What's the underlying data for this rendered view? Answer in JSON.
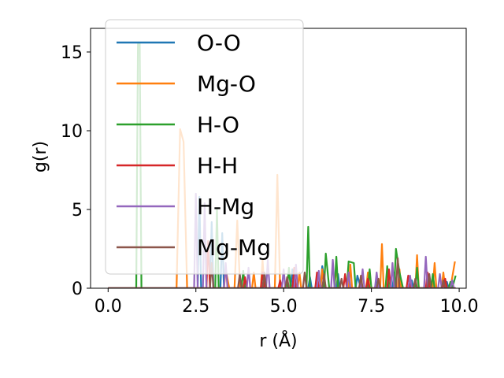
{
  "chart_data": {
    "type": "line",
    "xlabel": "r (Å)",
    "ylabel": "g(r)",
    "xlim": [
      -0.5,
      10.2
    ],
    "ylim": [
      0,
      16.5
    ],
    "x_ticks": [
      "0.0",
      "2.5",
      "5.0",
      "7.5",
      "10.0"
    ],
    "y_ticks": [
      "0",
      "5",
      "10",
      "15"
    ],
    "legend_position": "upper-left",
    "grid": false,
    "series": [
      {
        "name": "O-O",
        "color": "#1f77b4",
        "points": [
          [
            0,
            0
          ],
          [
            2.0,
            0
          ],
          [
            2.55,
            0
          ],
          [
            2.6,
            5.8
          ],
          [
            2.65,
            0
          ],
          [
            2.9,
            0
          ],
          [
            2.95,
            4.2
          ],
          [
            3.0,
            0
          ],
          [
            3.2,
            0
          ],
          [
            3.25,
            3.5
          ],
          [
            3.3,
            0
          ],
          [
            4.4,
            0
          ],
          [
            4.45,
            1.0
          ],
          [
            4.5,
            0
          ],
          [
            5.2,
            0
          ],
          [
            5.25,
            1.2
          ],
          [
            5.3,
            0
          ],
          [
            5.7,
            0
          ],
          [
            5.75,
            0.7
          ],
          [
            5.8,
            0
          ],
          [
            6.05,
            0
          ],
          [
            6.1,
            1.4
          ],
          [
            6.2,
            0
          ],
          [
            6.5,
            0
          ],
          [
            6.55,
            0.9
          ],
          [
            6.6,
            0
          ],
          [
            7.05,
            0
          ],
          [
            7.1,
            0.8
          ],
          [
            7.2,
            0
          ],
          [
            7.6,
            0
          ],
          [
            7.65,
            0.6
          ],
          [
            7.7,
            0
          ],
          [
            8.1,
            0
          ],
          [
            8.15,
            1.0
          ],
          [
            8.2,
            0
          ],
          [
            8.6,
            0
          ],
          [
            8.65,
            0.5
          ],
          [
            8.7,
            0
          ],
          [
            9.1,
            0
          ],
          [
            9.15,
            0.7
          ],
          [
            9.2,
            0
          ],
          [
            9.6,
            0
          ],
          [
            9.65,
            0.4
          ],
          [
            9.7,
            0
          ],
          [
            9.9,
            0
          ]
        ]
      },
      {
        "name": "Mg-O",
        "color": "#ff7f0e",
        "points": [
          [
            0,
            0
          ],
          [
            1.95,
            0
          ],
          [
            2.05,
            10.1
          ],
          [
            2.15,
            9.3
          ],
          [
            2.25,
            0
          ],
          [
            3.3,
            0
          ],
          [
            3.35,
            1.2
          ],
          [
            3.45,
            0
          ],
          [
            3.6,
            0
          ],
          [
            3.68,
            4.3
          ],
          [
            3.76,
            0
          ],
          [
            4.1,
            0
          ],
          [
            4.15,
            1.0
          ],
          [
            4.2,
            0
          ],
          [
            4.35,
            0
          ],
          [
            4.4,
            1.8
          ],
          [
            4.45,
            0
          ],
          [
            4.75,
            0
          ],
          [
            4.82,
            7.2
          ],
          [
            4.9,
            0
          ],
          [
            5.4,
            0
          ],
          [
            5.45,
            1.0
          ],
          [
            5.5,
            0
          ],
          [
            6.05,
            0
          ],
          [
            6.1,
            1.2
          ],
          [
            6.15,
            0
          ],
          [
            6.45,
            0
          ],
          [
            6.5,
            1.6
          ],
          [
            6.55,
            0
          ],
          [
            6.85,
            0
          ],
          [
            6.9,
            1.5
          ],
          [
            6.95,
            0
          ],
          [
            7.35,
            0
          ],
          [
            7.4,
            1.0
          ],
          [
            7.45,
            0
          ],
          [
            7.75,
            0
          ],
          [
            7.8,
            2.8
          ],
          [
            7.85,
            0
          ],
          [
            8.25,
            0
          ],
          [
            8.3,
            1.2
          ],
          [
            8.35,
            0
          ],
          [
            8.75,
            0
          ],
          [
            8.8,
            2.1
          ],
          [
            8.85,
            0
          ],
          [
            9.25,
            0
          ],
          [
            9.3,
            1.6
          ],
          [
            9.35,
            0
          ],
          [
            9.5,
            0
          ],
          [
            9.55,
            1.0
          ],
          [
            9.6,
            0
          ],
          [
            9.75,
            0
          ],
          [
            9.88,
            1.7
          ]
        ]
      },
      {
        "name": "H-O",
        "color": "#2ca02c",
        "points": [
          [
            0,
            0
          ],
          [
            0.8,
            0
          ],
          [
            0.85,
            15.6
          ],
          [
            0.9,
            15.6
          ],
          [
            0.95,
            0
          ],
          [
            3.05,
            0
          ],
          [
            3.1,
            5.0
          ],
          [
            3.15,
            0
          ],
          [
            3.8,
            0
          ],
          [
            3.85,
            1.1
          ],
          [
            3.9,
            0
          ],
          [
            4.4,
            0
          ],
          [
            4.45,
            0.6
          ],
          [
            4.5,
            0
          ],
          [
            5.1,
            0
          ],
          [
            5.15,
            1.3
          ],
          [
            5.2,
            0
          ],
          [
            5.65,
            0
          ],
          [
            5.7,
            3.9
          ],
          [
            5.75,
            0
          ],
          [
            6.15,
            0
          ],
          [
            6.2,
            2.2
          ],
          [
            6.3,
            0
          ],
          [
            6.45,
            0
          ],
          [
            6.5,
            2.0
          ],
          [
            6.55,
            0
          ],
          [
            6.8,
            0
          ],
          [
            6.85,
            1.7
          ],
          [
            7.0,
            1.6
          ],
          [
            7.05,
            0
          ],
          [
            7.4,
            0
          ],
          [
            7.45,
            1.2
          ],
          [
            7.5,
            0
          ],
          [
            7.9,
            0
          ],
          [
            7.95,
            1.4
          ],
          [
            8.0,
            0
          ],
          [
            8.15,
            0
          ],
          [
            8.2,
            2.5
          ],
          [
            8.3,
            1.0
          ],
          [
            8.4,
            0
          ],
          [
            8.75,
            0
          ],
          [
            8.8,
            1.3
          ],
          [
            8.85,
            0
          ],
          [
            9.2,
            0
          ],
          [
            9.25,
            0.9
          ],
          [
            9.3,
            0
          ],
          [
            9.7,
            0
          ],
          [
            9.75,
            0.4
          ],
          [
            9.8,
            0
          ],
          [
            9.9,
            0.8
          ]
        ]
      },
      {
        "name": "H-H",
        "color": "#d62728",
        "points": [
          [
            0,
            0
          ],
          [
            2.8,
            0
          ],
          [
            2.85,
            3.0
          ],
          [
            2.9,
            0
          ],
          [
            3.85,
            0
          ],
          [
            3.9,
            0.7
          ],
          [
            3.95,
            0
          ],
          [
            4.35,
            0
          ],
          [
            4.4,
            1.0
          ],
          [
            4.45,
            0
          ],
          [
            4.85,
            0
          ],
          [
            4.9,
            0.5
          ],
          [
            4.95,
            0
          ],
          [
            5.25,
            0
          ],
          [
            5.3,
            1.3
          ],
          [
            5.35,
            0
          ],
          [
            5.9,
            0
          ],
          [
            5.95,
            1.0
          ],
          [
            6.0,
            0
          ],
          [
            6.7,
            0
          ],
          [
            6.75,
            0.9
          ],
          [
            6.8,
            0
          ],
          [
            7.35,
            0
          ],
          [
            7.4,
            0.6
          ],
          [
            7.45,
            0
          ],
          [
            7.95,
            0
          ],
          [
            8.0,
            1.2
          ],
          [
            8.05,
            0
          ],
          [
            8.5,
            0
          ],
          [
            8.55,
            0.8
          ],
          [
            8.6,
            0
          ],
          [
            9.05,
            0
          ],
          [
            9.1,
            1.0
          ],
          [
            9.15,
            0
          ],
          [
            9.55,
            0
          ],
          [
            9.6,
            0.6
          ],
          [
            9.65,
            0
          ],
          [
            9.9,
            0
          ]
        ]
      },
      {
        "name": "H-Mg",
        "color": "#9467bd",
        "points": [
          [
            0,
            0
          ],
          [
            2.45,
            0
          ],
          [
            2.5,
            6.0
          ],
          [
            2.55,
            0
          ],
          [
            2.7,
            0
          ],
          [
            2.75,
            5.4
          ],
          [
            2.8,
            0
          ],
          [
            3.3,
            0
          ],
          [
            3.35,
            1.6
          ],
          [
            3.4,
            0
          ],
          [
            3.95,
            0
          ],
          [
            4.0,
            1.3
          ],
          [
            4.05,
            0
          ],
          [
            4.5,
            0
          ],
          [
            4.55,
            1.8
          ],
          [
            4.6,
            0
          ],
          [
            4.95,
            0
          ],
          [
            5.0,
            1.2
          ],
          [
            5.05,
            0
          ],
          [
            5.3,
            0
          ],
          [
            5.35,
            1.5
          ],
          [
            5.4,
            0
          ],
          [
            5.95,
            0
          ],
          [
            6.0,
            1.1
          ],
          [
            6.05,
            0
          ],
          [
            6.35,
            0
          ],
          [
            6.4,
            1.8
          ],
          [
            6.45,
            0
          ],
          [
            6.8,
            0
          ],
          [
            6.85,
            1.0
          ],
          [
            6.9,
            0
          ],
          [
            7.2,
            0
          ],
          [
            7.25,
            1.2
          ],
          [
            7.3,
            0
          ],
          [
            7.6,
            0
          ],
          [
            7.65,
            1.0
          ],
          [
            7.7,
            0
          ],
          [
            8.05,
            0
          ],
          [
            8.1,
            1.6
          ],
          [
            8.15,
            0
          ],
          [
            8.55,
            0
          ],
          [
            8.6,
            0.8
          ],
          [
            8.65,
            0
          ],
          [
            9.0,
            0
          ],
          [
            9.05,
            2.0
          ],
          [
            9.1,
            0
          ],
          [
            9.4,
            0
          ],
          [
            9.45,
            0.9
          ],
          [
            9.5,
            0
          ],
          [
            9.75,
            0
          ],
          [
            9.8,
            0.5
          ],
          [
            9.85,
            0
          ]
        ]
      },
      {
        "name": "Mg-Mg",
        "color": "#8c564b",
        "points": [
          [
            0,
            0
          ],
          [
            2.9,
            0
          ],
          [
            2.95,
            1.6
          ],
          [
            3.0,
            0
          ],
          [
            3.7,
            0
          ],
          [
            3.75,
            0.9
          ],
          [
            3.8,
            0
          ],
          [
            4.4,
            0
          ],
          [
            4.45,
            1.0
          ],
          [
            4.5,
            0
          ],
          [
            5.05,
            0
          ],
          [
            5.1,
            0.7
          ],
          [
            5.15,
            0
          ],
          [
            5.55,
            0
          ],
          [
            5.6,
            1.0
          ],
          [
            5.65,
            0
          ],
          [
            6.1,
            0
          ],
          [
            6.15,
            0.9
          ],
          [
            6.2,
            0
          ],
          [
            6.6,
            0
          ],
          [
            6.65,
            0.6
          ],
          [
            6.7,
            0
          ],
          [
            7.15,
            0
          ],
          [
            7.2,
            0.8
          ],
          [
            7.25,
            0
          ],
          [
            7.65,
            0
          ],
          [
            7.7,
            0.6
          ],
          [
            7.75,
            0
          ],
          [
            8.2,
            0
          ],
          [
            8.25,
            1.9
          ],
          [
            8.3,
            0
          ],
          [
            8.7,
            0
          ],
          [
            8.75,
            0.6
          ],
          [
            8.8,
            0
          ],
          [
            9.1,
            0
          ],
          [
            9.15,
            0.9
          ],
          [
            9.2,
            0
          ],
          [
            9.5,
            0
          ],
          [
            9.55,
            0.5
          ],
          [
            9.6,
            0
          ],
          [
            9.9,
            0
          ]
        ]
      }
    ]
  }
}
